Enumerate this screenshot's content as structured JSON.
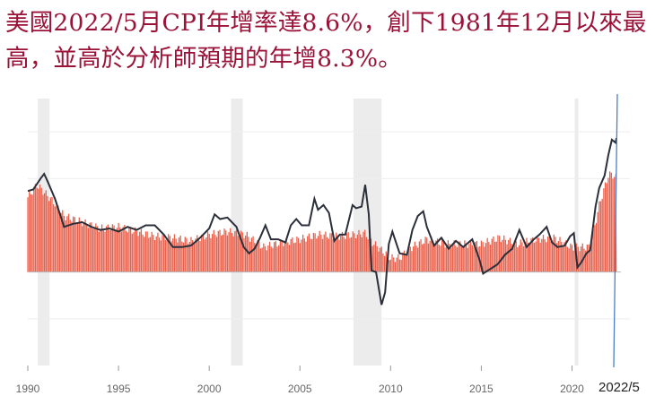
{
  "headline": "美國2022/5月CPI年增率達8.6%，創下1981年12月以來最高，並高於分析師預期的年增8.3%。",
  "annotation": "2022/5",
  "chart_data": {
    "type": "line",
    "x_tick_labels": [
      "1990",
      "1995",
      "2000",
      "2005",
      "2010",
      "2015",
      "2020"
    ],
    "x_range": [
      1990,
      2022.5
    ],
    "y_range": [
      -6,
      12
    ],
    "series": [
      {
        "style": "line",
        "color": "#2b2f3a",
        "points": [
          [
            1990.0,
            5.2
          ],
          [
            1990.3,
            5.3
          ],
          [
            1990.7,
            6.0
          ],
          [
            1990.9,
            6.3
          ],
          [
            1991.1,
            5.8
          ],
          [
            1991.5,
            4.7
          ],
          [
            1992.0,
            2.9
          ],
          [
            1992.5,
            3.1
          ],
          [
            1993.0,
            3.2
          ],
          [
            1993.5,
            2.9
          ],
          [
            1994.0,
            2.7
          ],
          [
            1994.5,
            2.8
          ],
          [
            1995.0,
            2.6
          ],
          [
            1995.5,
            2.9
          ],
          [
            1996.0,
            2.7
          ],
          [
            1996.5,
            3.0
          ],
          [
            1997.0,
            3.0
          ],
          [
            1997.5,
            2.4
          ],
          [
            1998.0,
            1.6
          ],
          [
            1998.5,
            1.6
          ],
          [
            1999.0,
            1.7
          ],
          [
            1999.5,
            2.2
          ],
          [
            2000.0,
            2.8
          ],
          [
            2000.3,
            3.7
          ],
          [
            2000.6,
            3.4
          ],
          [
            2001.0,
            3.5
          ],
          [
            2001.5,
            2.9
          ],
          [
            2001.9,
            1.6
          ],
          [
            2002.2,
            1.2
          ],
          [
            2002.5,
            1.5
          ],
          [
            2002.8,
            2.2
          ],
          [
            2003.1,
            3.0
          ],
          [
            2003.4,
            2.1
          ],
          [
            2003.8,
            2.1
          ],
          [
            2004.2,
            1.9
          ],
          [
            2004.5,
            3.0
          ],
          [
            2004.8,
            3.4
          ],
          [
            2005.1,
            3.0
          ],
          [
            2005.5,
            3.0
          ],
          [
            2005.8,
            4.7
          ],
          [
            2006.0,
            4.0
          ],
          [
            2006.3,
            4.3
          ],
          [
            2006.6,
            3.8
          ],
          [
            2006.9,
            2.0
          ],
          [
            2007.2,
            2.4
          ],
          [
            2007.5,
            2.4
          ],
          [
            2007.9,
            4.3
          ],
          [
            2008.1,
            4.1
          ],
          [
            2008.4,
            4.2
          ],
          [
            2008.6,
            5.6
          ],
          [
            2008.8,
            3.7
          ],
          [
            2008.95,
            0.1
          ],
          [
            2009.2,
            0.0
          ],
          [
            2009.5,
            -2.1
          ],
          [
            2009.7,
            -1.3
          ],
          [
            2009.9,
            1.8
          ],
          [
            2010.1,
            2.6
          ],
          [
            2010.5,
            1.2
          ],
          [
            2010.9,
            1.1
          ],
          [
            2011.2,
            2.7
          ],
          [
            2011.5,
            3.6
          ],
          [
            2011.8,
            3.9
          ],
          [
            2012.0,
            2.9
          ],
          [
            2012.4,
            1.7
          ],
          [
            2012.8,
            2.2
          ],
          [
            2013.2,
            1.5
          ],
          [
            2013.6,
            2.0
          ],
          [
            2014.0,
            1.6
          ],
          [
            2014.5,
            2.1
          ],
          [
            2014.9,
            0.8
          ],
          [
            2015.1,
            -0.1
          ],
          [
            2015.5,
            0.2
          ],
          [
            2015.9,
            0.5
          ],
          [
            2016.3,
            1.1
          ],
          [
            2016.7,
            1.5
          ],
          [
            2017.1,
            2.7
          ],
          [
            2017.5,
            1.6
          ],
          [
            2017.9,
            2.1
          ],
          [
            2018.2,
            2.4
          ],
          [
            2018.6,
            2.9
          ],
          [
            2018.9,
            1.9
          ],
          [
            2019.2,
            1.6
          ],
          [
            2019.6,
            1.7
          ],
          [
            2019.9,
            2.3
          ],
          [
            2020.1,
            2.5
          ],
          [
            2020.3,
            0.3
          ],
          [
            2020.5,
            0.6
          ],
          [
            2020.8,
            1.2
          ],
          [
            2021.0,
            1.4
          ],
          [
            2021.3,
            4.2
          ],
          [
            2021.5,
            5.4
          ],
          [
            2021.8,
            6.2
          ],
          [
            2022.0,
            7.5
          ],
          [
            2022.2,
            8.5
          ],
          [
            2022.4,
            8.3
          ],
          [
            2022.45,
            8.6
          ]
        ]
      },
      {
        "style": "bars",
        "color": "#e8604c",
        "points": [
          [
            1990,
            4.8
          ],
          [
            1990.5,
            5.6
          ],
          [
            1991,
            5.0
          ],
          [
            1991.5,
            4.4
          ],
          [
            1992,
            3.6
          ],
          [
            1993,
            3.2
          ],
          [
            1994,
            2.8
          ],
          [
            1995,
            2.9
          ],
          [
            1996,
            2.6
          ],
          [
            1997,
            2.3
          ],
          [
            1998,
            2.2
          ],
          [
            1999,
            2.0
          ],
          [
            2000,
            2.4
          ],
          [
            2001,
            2.6
          ],
          [
            2002,
            2.4
          ],
          [
            2003,
            1.6
          ],
          [
            2004,
            1.9
          ],
          [
            2005,
            2.1
          ],
          [
            2006,
            2.4
          ],
          [
            2007,
            2.3
          ],
          [
            2008,
            2.4
          ],
          [
            2008.6,
            2.5
          ],
          [
            2009,
            1.9
          ],
          [
            2009.5,
            1.4
          ],
          [
            2010,
            0.9
          ],
          [
            2010.5,
            0.9
          ],
          [
            2011,
            1.5
          ],
          [
            2012,
            2.1
          ],
          [
            2013,
            1.8
          ],
          [
            2014,
            1.8
          ],
          [
            2015,
            1.8
          ],
          [
            2016,
            2.2
          ],
          [
            2017,
            1.8
          ],
          [
            2018,
            2.1
          ],
          [
            2019,
            2.2
          ],
          [
            2020,
            1.6
          ],
          [
            2020.5,
            1.6
          ],
          [
            2021,
            1.6
          ],
          [
            2021.5,
            4.3
          ],
          [
            2022,
            6.2
          ],
          [
            2022.2,
            6.3
          ],
          [
            2022.45,
            6.0
          ]
        ]
      }
    ],
    "recession_shading": [
      [
        1990.55,
        1991.2
      ],
      [
        2001.2,
        2001.85
      ],
      [
        2007.95,
        2009.5
      ],
      [
        2020.15,
        2020.35
      ]
    ],
    "zero_line": 0,
    "grid": true,
    "reference_line_color": "#4a7fc4"
  }
}
